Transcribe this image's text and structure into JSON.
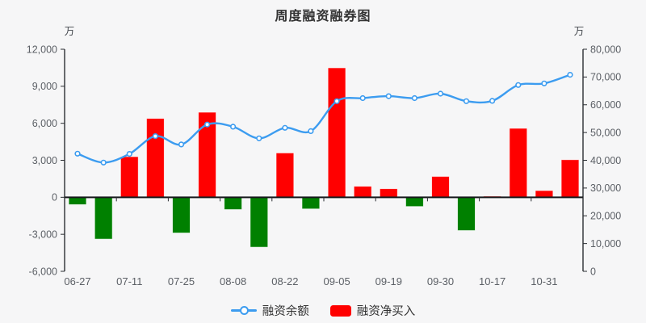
{
  "colors": {
    "background": "#f6f6f7",
    "bar_positive": "#ff0000",
    "bar_negative": "#008000",
    "line": "#3c9cf0",
    "axis_line": "#2b2e33",
    "zero_line": "#17191c",
    "axis_text": "#5c6066",
    "title_text": "#333333"
  },
  "chart_data": {
    "type": "bar+line",
    "title": "周度融资融券图",
    "legend_position": "bottom",
    "grid": false,
    "x_tick_labels": [
      "06-27",
      "07-11",
      "07-25",
      "08-08",
      "08-22",
      "09-05",
      "09-19",
      "09-30",
      "10-17",
      "10-31"
    ],
    "bars_per_label": 2,
    "left_axis": {
      "unit": "万",
      "min": -6000,
      "max": 12000,
      "tick_step": 3000
    },
    "right_axis": {
      "unit": "万",
      "min": 0,
      "max": 80000,
      "tick_step": 10000
    },
    "series": [
      {
        "name": "融资余额",
        "type": "line",
        "axis": "right",
        "values": [
          42400,
          39200,
          42300,
          48700,
          45700,
          52900,
          52100,
          47900,
          51700,
          50500,
          61300,
          62400,
          63100,
          62400,
          64000,
          61300,
          61400,
          67100,
          67700,
          70800
        ]
      },
      {
        "name": "融资净买入",
        "type": "bar",
        "axis": "left",
        "values": [
          -600,
          -3400,
          3300,
          6400,
          -2900,
          6900,
          -1000,
          -4050,
          3600,
          -950,
          10500,
          900,
          700,
          -750,
          1700,
          -2700,
          100,
          5600,
          550,
          3050
        ]
      }
    ]
  }
}
